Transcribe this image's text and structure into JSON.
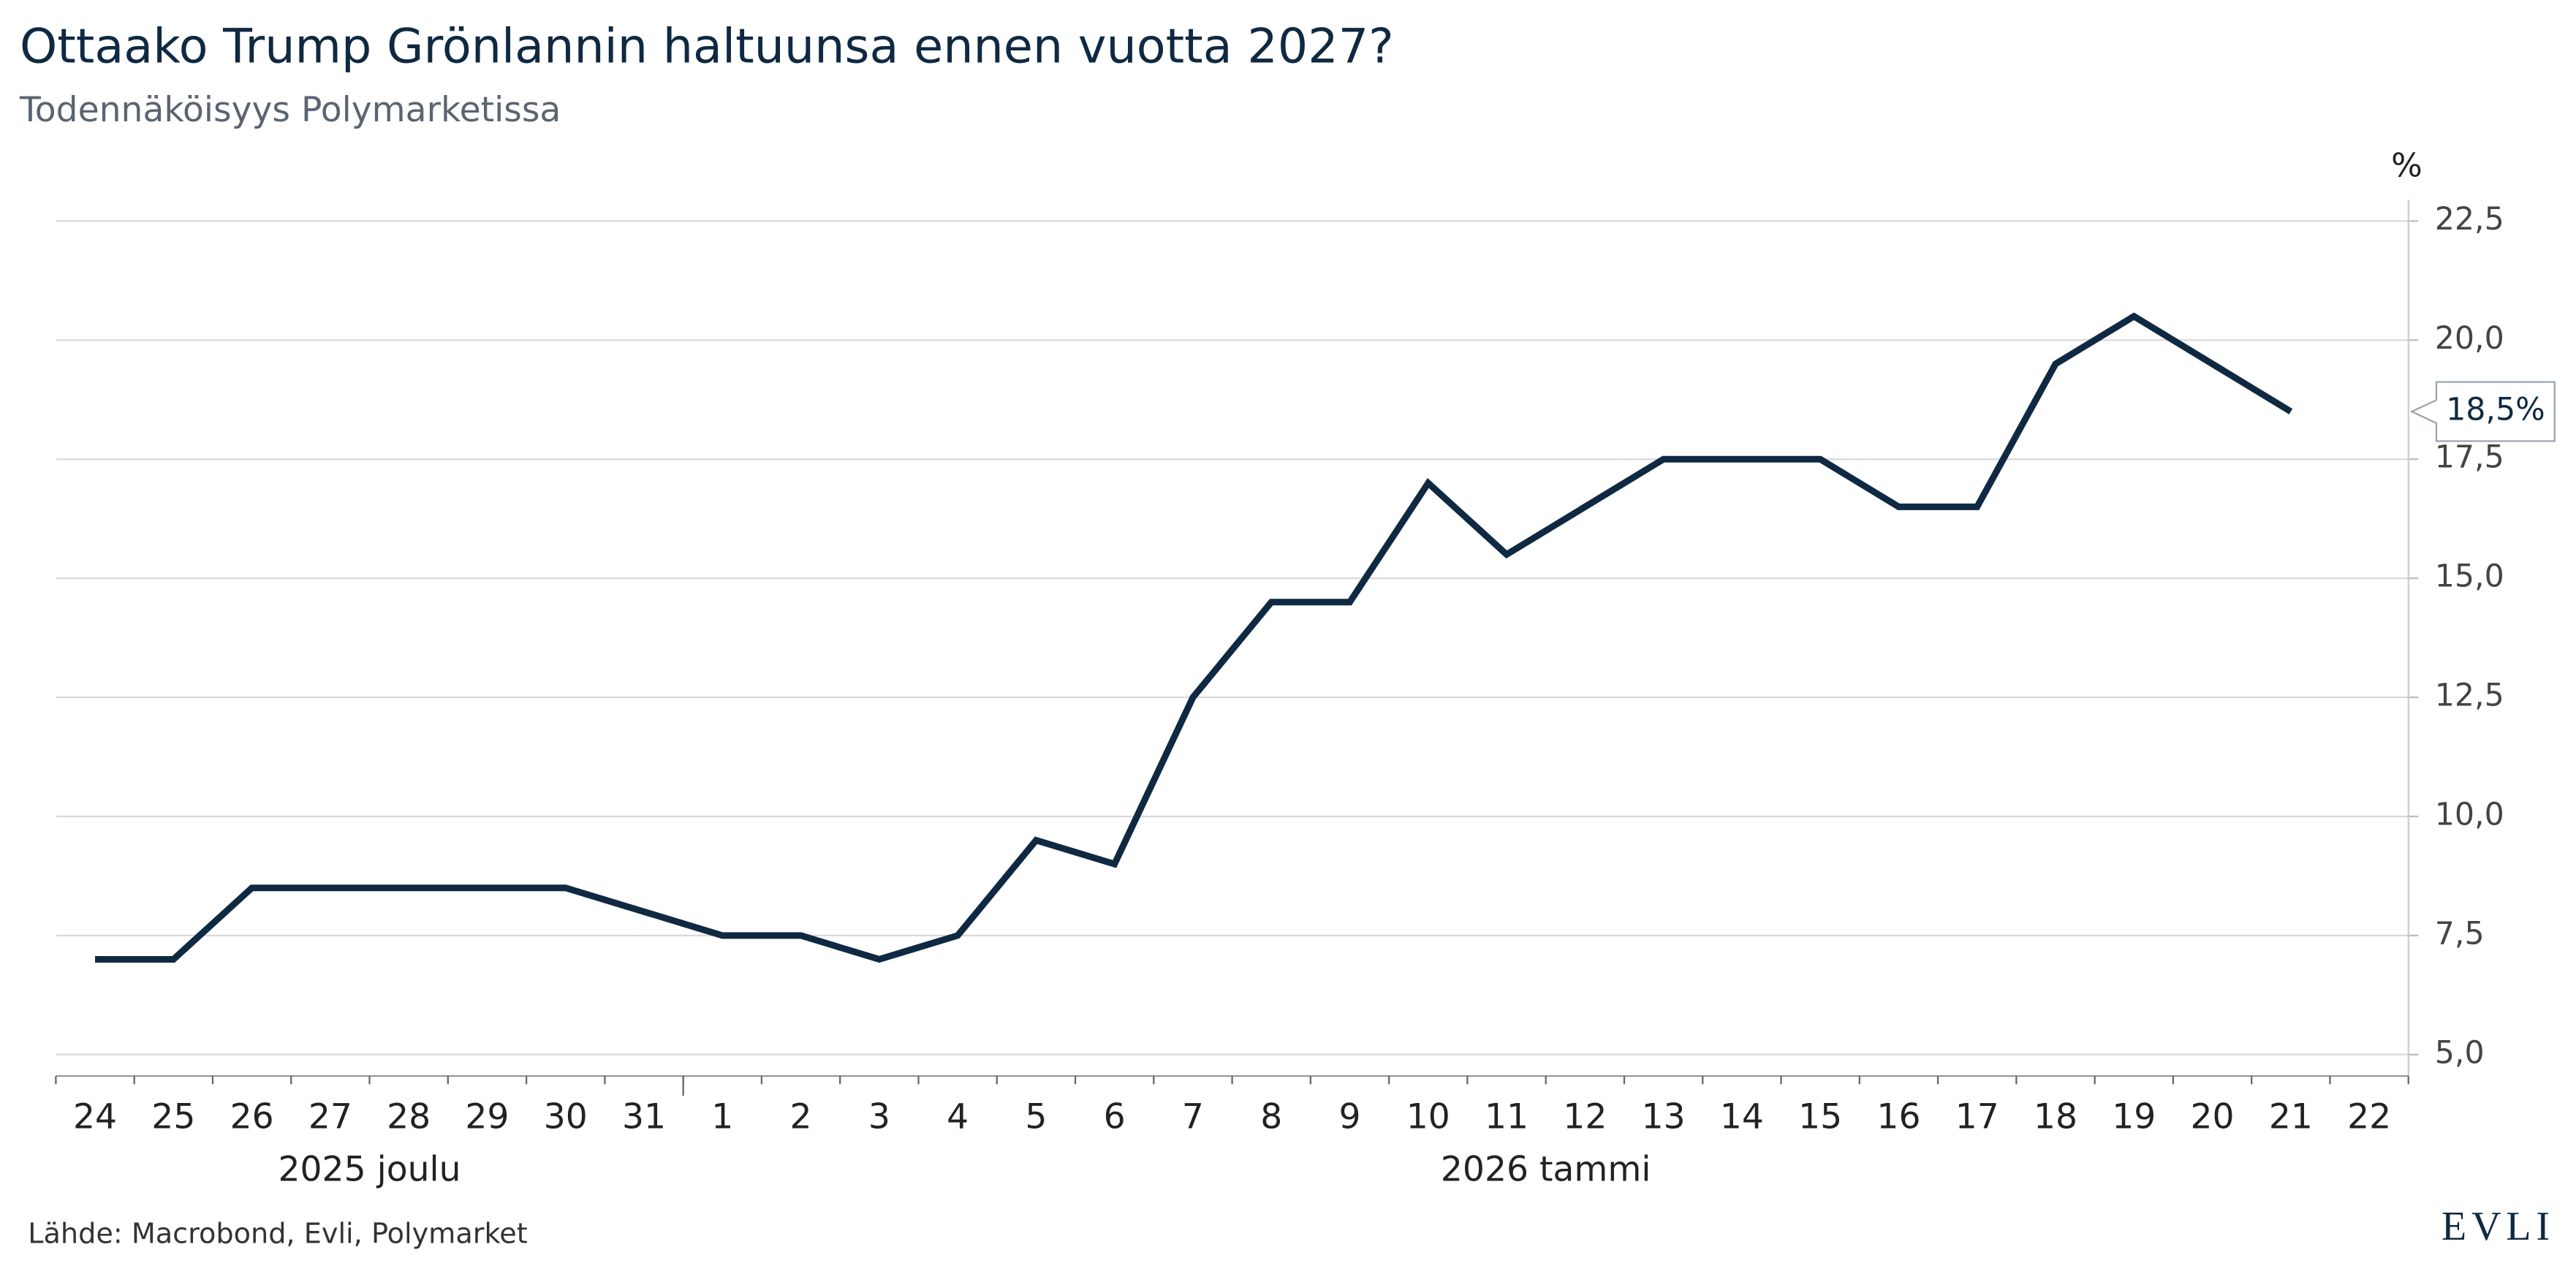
{
  "chart_data": {
    "type": "line",
    "title": "Ottaako Trump Grönlannin haltuunsa ennen vuotta 2027?",
    "subtitle": "Todennäköisyys Polymarketissa",
    "y_unit": "%",
    "categories": [
      "24",
      "25",
      "26",
      "27",
      "28",
      "29",
      "30",
      "31",
      "1",
      "2",
      "3",
      "4",
      "5",
      "6",
      "7",
      "8",
      "9",
      "10",
      "11",
      "12",
      "13",
      "14",
      "15",
      "16",
      "17",
      "18",
      "19",
      "20",
      "21",
      "22"
    ],
    "category_groups": [
      {
        "label": "2025 joulu",
        "start": 0,
        "end": 7
      },
      {
        "label": "2026 tammi",
        "start": 8,
        "end": 29
      }
    ],
    "values": [
      7.0,
      7.0,
      8.5,
      8.5,
      8.5,
      8.5,
      8.5,
      8.0,
      7.5,
      7.5,
      7.0,
      7.5,
      9.5,
      9.0,
      12.5,
      14.5,
      14.5,
      17.0,
      15.5,
      16.5,
      17.5,
      17.5,
      17.5,
      16.5,
      16.5,
      19.5,
      20.5,
      19.5,
      18.5,
      null
    ],
    "value_labels": [
      null,
      null,
      null,
      null,
      null,
      null,
      null,
      null,
      null,
      null,
      null,
      null,
      null,
      null,
      null,
      null,
      null,
      null,
      null,
      null,
      null,
      null,
      null,
      null,
      null,
      null,
      null,
      null,
      "18,5%",
      null
    ],
    "color": "#0f2942",
    "ylim": [
      4.55,
      22.95
    ],
    "yticks": [
      {
        "value": 5,
        "label": "5,0"
      },
      {
        "value": 7.5,
        "label": "7,5"
      },
      {
        "value": 10,
        "label": "10,0"
      },
      {
        "value": 12.5,
        "label": "12,5"
      },
      {
        "value": 15,
        "label": "15,0"
      },
      {
        "value": 17.5,
        "label": "17,5"
      },
      {
        "value": 20,
        "label": "20,0"
      },
      {
        "value": 22.5,
        "label": "22,5"
      }
    ],
    "grid": true,
    "source": "Lähde: Macrobond, Evli, Polymarket",
    "logo": "EVLI"
  }
}
